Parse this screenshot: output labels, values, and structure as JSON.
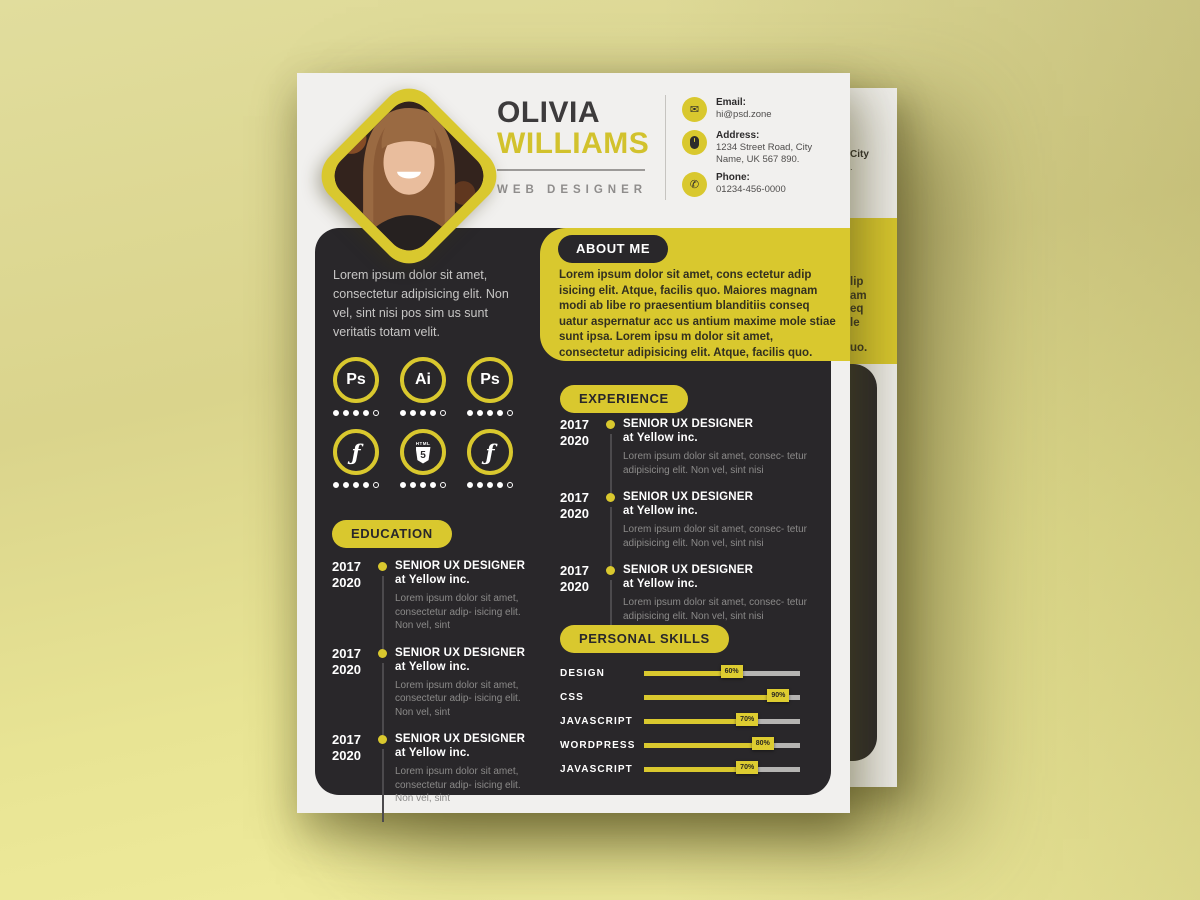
{
  "colors": {
    "accent": "#d9c82e",
    "dark_panel": "#29272a",
    "paper": "#f1f0ee",
    "background": "#ddd894",
    "muted_text": "#8b8a89",
    "bar_track": "#b5b4b2"
  },
  "header": {
    "first_name": "OLIVIA",
    "last_name": "WILLIAMS",
    "role": "WEB DESIGNER",
    "contact": [
      {
        "label": "Email:",
        "value": "hi@psd.zone"
      },
      {
        "label": "Address:",
        "value": "1234 Street Road, City Name,  UK 567 890."
      },
      {
        "label": "Phone:",
        "value": "01234-456-0000"
      }
    ]
  },
  "about": {
    "title": "ABOUT ME",
    "body": "Lorem ipsum dolor sit amet, cons ectetur adip isicing elit. Atque, facilis quo. Maiores magnam modi ab libe ro praesentium blanditiis conseq uatur aspernatur acc us antium maxime mole stiae sunt ipsa. Lorem ipsu m dolor sit amet, consectetur adipisicing elit. Atque, facilis quo."
  },
  "profile": {
    "intro": "Lorem ipsum dolor sit amet, consectetur adipisicing elit. Non vel, sint nisi pos sim us sunt veritatis totam velit."
  },
  "tools": [
    {
      "name": "photoshop",
      "glyph": "Ps",
      "rating": 4,
      "max": 5
    },
    {
      "name": "illustrator",
      "glyph": "Ai",
      "rating": 4,
      "max": 5
    },
    {
      "name": "photoshop",
      "glyph": "Ps",
      "rating": 4,
      "max": 5
    },
    {
      "name": "flash",
      "glyph": "ƒ",
      "rating": 4,
      "max": 5
    },
    {
      "name": "html5",
      "glyph": "5",
      "tag": "HTML",
      "rating": 4,
      "max": 5
    },
    {
      "name": "flash",
      "glyph": "ƒ",
      "rating": 4,
      "max": 5
    }
  ],
  "education": {
    "title": "EDUCATION",
    "entries": [
      {
        "start": "2017",
        "end": "2020",
        "title": "SENIOR UX DESIGNER",
        "subtitle": "at Yellow inc.",
        "body": "Lorem ipsum dolor sit amet, consectetur adip- isicing elit. Non vel, sint"
      },
      {
        "start": "2017",
        "end": "2020",
        "title": "SENIOR UX DESIGNER",
        "subtitle": "at Yellow inc.",
        "body": "Lorem ipsum dolor sit amet, consectetur adip- isicing elit. Non vel, sint"
      },
      {
        "start": "2017",
        "end": "2020",
        "title": "SENIOR UX DESIGNER",
        "subtitle": "at Yellow inc.",
        "body": "Lorem ipsum dolor sit amet, consectetur adip- isicing elit. Non vel, sint"
      }
    ]
  },
  "experience": {
    "title": "EXPERIENCE",
    "entries": [
      {
        "start": "2017",
        "end": "2020",
        "title": "SENIOR UX DESIGNER",
        "subtitle": "at Yellow inc.",
        "body": "Lorem ipsum dolor sit amet, consec- tetur adipisicing elit. Non vel, sint nisi"
      },
      {
        "start": "2017",
        "end": "2020",
        "title": "SENIOR UX DESIGNER",
        "subtitle": "at Yellow inc.",
        "body": "Lorem ipsum dolor sit amet, consec- tetur adipisicing elit. Non vel, sint nisi"
      },
      {
        "start": "2017",
        "end": "2020",
        "title": "SENIOR UX DESIGNER",
        "subtitle": "at Yellow inc.",
        "body": "Lorem ipsum dolor sit amet, consec- tetur adipisicing elit. Non vel, sint nisi"
      }
    ]
  },
  "skills": {
    "title": "PERSONAL SKILLS",
    "items": [
      {
        "label": "DESIGN",
        "percent": 60,
        "percent_label": "60%"
      },
      {
        "label": "CSS",
        "percent": 90,
        "percent_label": "90%"
      },
      {
        "label": "JAVASCRIPT",
        "percent": 70,
        "percent_label": "70%"
      },
      {
        "label": "WORDPRESS",
        "percent": 80,
        "percent_label": "80%"
      },
      {
        "label": "JAVASCRIPT",
        "percent": 70,
        "percent_label": "70%"
      }
    ]
  },
  "back_page": {
    "fragments": {
      "address_line": "City",
      "address_line2": ".",
      "about_lines": [
        "lip",
        "am",
        "eq",
        "le",
        "uo."
      ]
    }
  }
}
